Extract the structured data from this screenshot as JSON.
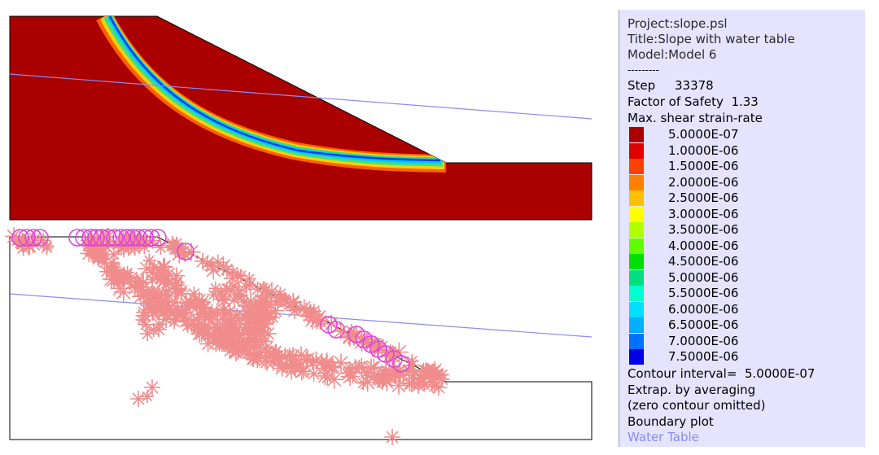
{
  "legend": {
    "project": "Project:slope.psl",
    "title": "Title:Slope with water table",
    "model": "Model:Model 6",
    "separator": "---------",
    "step_label": "Step",
    "step_value": "33378",
    "fos_label": "Factor of Safety",
    "fos_value": "1.33",
    "quantity": "Max. shear strain-rate",
    "contour_interval_label": "Contour interval=",
    "contour_interval_value": "5.0000E-07",
    "extrap": "Extrap. by averaging",
    "zero_omitted": "(zero contour omitted)",
    "boundary": "Boundary plot",
    "water_table": "Water Table",
    "levels": [
      {
        "label": "5.0000E-07",
        "color": "#aa0000"
      },
      {
        "label": "1.0000E-06",
        "color": "#e00000"
      },
      {
        "label": "1.5000E-06",
        "color": "#ff4000"
      },
      {
        "label": "2.0000E-06",
        "color": "#ff8000"
      },
      {
        "label": "2.5000E-06",
        "color": "#ffc000"
      },
      {
        "label": "3.0000E-06",
        "color": "#ffff00"
      },
      {
        "label": "3.5000E-06",
        "color": "#b0ff00"
      },
      {
        "label": "4.0000E-06",
        "color": "#60ff00"
      },
      {
        "label": "4.5000E-06",
        "color": "#00e000"
      },
      {
        "label": "5.0000E-06",
        "color": "#00e080"
      },
      {
        "label": "5.5000E-06",
        "color": "#00ffd0"
      },
      {
        "label": "6.0000E-06",
        "color": "#00e0ff"
      },
      {
        "label": "6.5000E-06",
        "color": "#00b0ff"
      },
      {
        "label": "7.0000E-06",
        "color": "#0070ff"
      },
      {
        "label": "7.5000E-06",
        "color": "#0000e0"
      }
    ]
  },
  "colors": {
    "soil": "#aa0000",
    "water_table": "#8a8cf0",
    "plastic_star": "#f08c8c",
    "plastic_circle": "#e040e0"
  }
}
